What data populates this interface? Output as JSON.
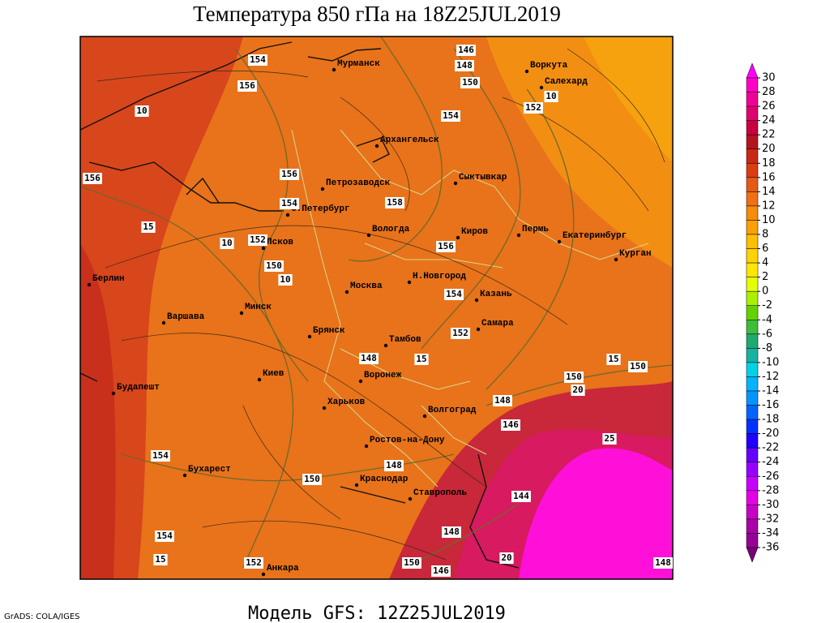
{
  "header": {
    "title": "Температура 850 гПа на 18Z25JUL2019"
  },
  "footer": {
    "model": "Модель GFS: 12Z25JUL2019",
    "credit": "GrADS: COLA/IGES"
  },
  "cities": [
    "Мурманск",
    "Воркута",
    "Салехард",
    "Архангельск",
    "Петрозаводск",
    "Сыктывкар",
    "С.Петербург",
    "Вологда",
    "Киров",
    "Пермь",
    "Екатеринбург",
    "Курган",
    "Псков",
    "Берлин",
    "Н.Новгород",
    "Москва",
    "Казань",
    "Варшава",
    "Минск",
    "Самара",
    "Брянск",
    "Тамбов",
    "Воронеж",
    "Киев",
    "Будапешт",
    "Харьков",
    "Волгоград",
    "Ростов-на-Дону",
    "Бухарест",
    "Краснодар",
    "Ставрополь",
    "Анкара"
  ],
  "contour_labels": [
    154,
    146,
    148,
    150,
    156,
    152,
    154,
    10,
    10,
    156,
    156,
    154,
    158,
    15,
    10,
    152,
    156,
    150,
    10,
    154,
    152,
    148,
    15,
    15,
    150,
    150,
    20,
    148,
    146,
    25,
    154,
    150,
    148,
    144,
    148,
    154,
    15,
    152,
    20,
    150,
    146,
    148
  ],
  "colorbar": {
    "ticks": [
      30,
      28,
      26,
      24,
      22,
      20,
      18,
      16,
      14,
      12,
      10,
      8,
      6,
      4,
      2,
      0,
      -2,
      -4,
      -6,
      -8,
      -10,
      -12,
      -14,
      -16,
      -18,
      -20,
      -22,
      -24,
      -26,
      -28,
      -30,
      -32,
      -34,
      -36
    ],
    "colors": [
      "#ff00ff",
      "#ff00c8",
      "#f00096",
      "#e0006e",
      "#c80040",
      "#b4141e",
      "#c82814",
      "#dc3c14",
      "#e65a14",
      "#f07014",
      "#f58c0a",
      "#faa000",
      "#ffbe00",
      "#ffd200",
      "#ffe600",
      "#e6ff00",
      "#aaf000",
      "#64d200",
      "#3cbe3c",
      "#1eaa6e",
      "#14b4a0",
      "#00d2e6",
      "#00b4ff",
      "#0096ff",
      "#0064ff",
      "#0032ff",
      "#1e00ff",
      "#6400ff",
      "#9600ff",
      "#c800ff",
      "#e600e6",
      "#c800c8",
      "#aa00aa",
      "#960096",
      "#780078"
    ]
  }
}
